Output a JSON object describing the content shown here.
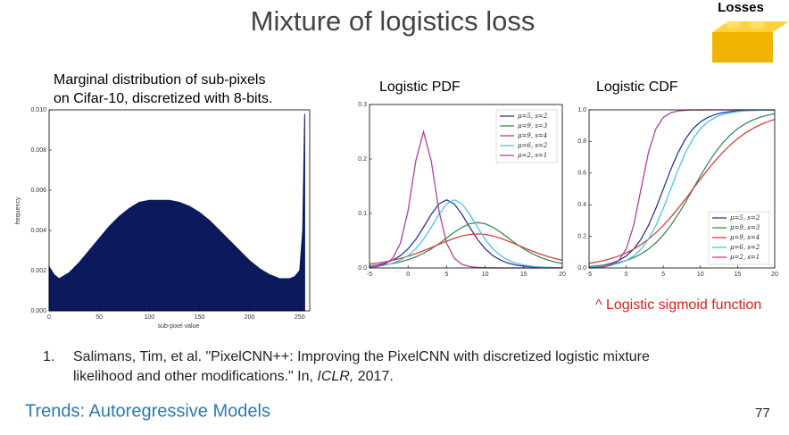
{
  "title": "Mixture of logistics loss",
  "badge": "Losses",
  "annotation": "^ Logistic sigmoid function",
  "reference": {
    "number": "1.",
    "line1": "Salimans, Tim, et al. \"PixelCNN++: Improving the PixelCNN with discretized logistic mixture",
    "line2_start": "likelihood and other modifications.\" In, ",
    "venue": "ICLR,",
    "line2_end": " 2017."
  },
  "footer": "Trends: Autoregressive Models",
  "page_number": "77",
  "chart_data": [
    {
      "type": "area",
      "title": [
        "Marginal distribution of sub-pixels",
        "on Cifar-10, discretized with 8-bits."
      ],
      "x_label": "sub-pixel value",
      "y_label": "frequency",
      "color": "#0b1a5a",
      "x": [
        0,
        5,
        10,
        20,
        30,
        40,
        50,
        60,
        70,
        80,
        90,
        100,
        110,
        120,
        130,
        140,
        150,
        160,
        170,
        180,
        190,
        200,
        210,
        220,
        230,
        240,
        245,
        250,
        253,
        255
      ],
      "values": [
        0.0022,
        0.0018,
        0.0016,
        0.0019,
        0.0024,
        0.003,
        0.0036,
        0.0042,
        0.0047,
        0.0051,
        0.0054,
        0.0055,
        0.0055,
        0.0055,
        0.0054,
        0.0052,
        0.0049,
        0.0045,
        0.004,
        0.0035,
        0.003,
        0.0025,
        0.0021,
        0.0018,
        0.0016,
        0.0016,
        0.0017,
        0.002,
        0.004,
        0.0098
      ],
      "xlim": [
        0,
        260
      ],
      "xticks": [
        0,
        50,
        100,
        150,
        200,
        250
      ],
      "ylim": [
        0,
        0.01
      ],
      "yticks": [
        {
          "value": 0,
          "label": "0.000"
        },
        0.002,
        0.004,
        0.006,
        0.008,
        {
          "value": 0.01,
          "label": "0.010"
        }
      ]
    },
    {
      "type": "line",
      "title": "Logistic PDF",
      "legend": "upper right",
      "x": [
        -5,
        -4,
        -3,
        -2,
        -1,
        0,
        1,
        2,
        3,
        4,
        5,
        6,
        7,
        8,
        9,
        10,
        11,
        12,
        13,
        14,
        15,
        16,
        17,
        18,
        19,
        20
      ],
      "xlim": [
        -5,
        20
      ],
      "xticks": [
        -5,
        0,
        5,
        10,
        15,
        20
      ],
      "ylim": [
        0,
        0.3
      ],
      "yticks": [
        {
          "value": 0,
          "label": "0.0"
        },
        0.1,
        0.2,
        0.3
      ],
      "series": [
        {
          "name": "μ=5, s=2",
          "color": "#2b3a9a",
          "values": [
            0.0033,
            0.0054,
            0.0088,
            0.0142,
            0.0226,
            0.0351,
            0.0525,
            0.0746,
            0.0983,
            0.1175,
            0.125,
            0.1175,
            0.0983,
            0.0746,
            0.0525,
            0.0351,
            0.0226,
            0.0142,
            0.0088,
            0.0054,
            0.0033,
            0.002,
            0.0012,
            0.0008,
            0.0005,
            0.0003
          ]
        },
        {
          "name": "μ=9, s=3",
          "color": "#3d8a5c",
          "values": [
            0.0031,
            0.0043,
            0.0059,
            0.0081,
            0.0111,
            0.0151,
            0.0203,
            0.0269,
            0.035,
            0.0445,
            0.055,
            0.0655,
            0.0747,
            0.0811,
            0.0833,
            0.0811,
            0.0747,
            0.0655,
            0.055,
            0.0445,
            0.035,
            0.0269,
            0.0203,
            0.0151,
            0.0111,
            0.0081
          ]
        },
        {
          "name": "μ=9, s=4",
          "color": "#d2433a",
          "values": [
            0.0071,
            0.009,
            0.0113,
            0.0141,
            0.0175,
            0.0216,
            0.0263,
            0.0315,
            0.0373,
            0.0433,
            0.0492,
            0.0545,
            0.0588,
            0.0615,
            0.0625,
            0.0615,
            0.0588,
            0.0545,
            0.0492,
            0.0433,
            0.0373,
            0.0315,
            0.0263,
            0.0216,
            0.0175,
            0.0141
          ]
        },
        {
          "name": "μ=6, s=2",
          "color": "#4ec3e3",
          "values": [
            0.002,
            0.0033,
            0.0054,
            0.0088,
            0.0142,
            0.0226,
            0.0351,
            0.0525,
            0.0746,
            0.0983,
            0.1175,
            0.125,
            0.1175,
            0.0983,
            0.0746,
            0.0525,
            0.0351,
            0.0226,
            0.0142,
            0.0088,
            0.0054,
            0.0033,
            0.002,
            0.0012,
            0.0008,
            0.0005
          ]
        },
        {
          "name": "μ=2, s=1",
          "color": "#b2409c",
          "values": [
            0.0009,
            0.0025,
            0.0066,
            0.0177,
            0.0452,
            0.105,
            0.1966,
            0.25,
            0.1966,
            0.105,
            0.0452,
            0.0177,
            0.0066,
            0.0025,
            0.0009,
            0.0003,
            0.0001,
            0,
            0,
            0,
            0,
            0,
            0,
            0,
            0,
            0
          ]
        }
      ]
    },
    {
      "type": "line",
      "title": "Logistic CDF",
      "legend": "lower right",
      "x": [
        -5,
        -4,
        -3,
        -2,
        -1,
        0,
        1,
        2,
        3,
        4,
        5,
        6,
        7,
        8,
        9,
        10,
        11,
        12,
        13,
        14,
        15,
        16,
        17,
        18,
        19,
        20
      ],
      "xlim": [
        -5,
        20
      ],
      "xticks": [
        -5,
        0,
        5,
        10,
        15,
        20
      ],
      "ylim": [
        0,
        1
      ],
      "yticks": [
        {
          "value": 0,
          "label": "0.0"
        },
        0.2,
        0.4,
        0.6,
        0.8,
        {
          "value": 1,
          "label": "1.0"
        }
      ],
      "series": [
        {
          "name": "μ=5, s=2",
          "color": "#2b3a9a",
          "values": [
            0.0067,
            0.011,
            0.018,
            0.0293,
            0.0474,
            0.0759,
            0.1192,
            0.1824,
            0.2689,
            0.3775,
            0.5,
            0.6225,
            0.7311,
            0.8176,
            0.8808,
            0.9241,
            0.9526,
            0.9707,
            0.982,
            0.989,
            0.9933,
            0.9959,
            0.9975,
            0.9985,
            0.9991,
            0.9994
          ]
        },
        {
          "name": "μ=9, s=3",
          "color": "#3d8a5c",
          "values": [
            0.0093,
            0.013,
            0.018,
            0.0249,
            0.0344,
            0.0474,
            0.0649,
            0.0884,
            0.1192,
            0.1589,
            0.2086,
            0.2689,
            0.3392,
            0.4174,
            0.5,
            0.5826,
            0.6608,
            0.7311,
            0.7914,
            0.8411,
            0.8808,
            0.9116,
            0.9351,
            0.9526,
            0.9656,
            0.9751
          ]
        },
        {
          "name": "μ=9, s=4",
          "color": "#d2433a",
          "values": [
            0.0293,
            0.0373,
            0.0474,
            0.0601,
            0.0759,
            0.0953,
            0.1192,
            0.148,
            0.1824,
            0.2227,
            0.2689,
            0.3208,
            0.3775,
            0.4378,
            0.5,
            0.5622,
            0.6225,
            0.6792,
            0.7311,
            0.7773,
            0.8176,
            0.852,
            0.8808,
            0.9047,
            0.9241,
            0.9399
          ]
        },
        {
          "name": "μ=6, s=2",
          "color": "#4ec3e3",
          "values": [
            0.0041,
            0.0067,
            0.011,
            0.018,
            0.0293,
            0.0474,
            0.0759,
            0.1192,
            0.1824,
            0.2689,
            0.3775,
            0.5,
            0.6225,
            0.7311,
            0.8176,
            0.8808,
            0.9241,
            0.9526,
            0.9707,
            0.982,
            0.989,
            0.9933,
            0.9959,
            0.9975,
            0.9985,
            0.9991
          ]
        },
        {
          "name": "μ=2, s=1",
          "color": "#b2409c",
          "values": [
            0.0009,
            0.0025,
            0.0067,
            0.018,
            0.0474,
            0.1192,
            0.2689,
            0.5,
            0.7311,
            0.8808,
            0.9526,
            0.982,
            0.9933,
            0.9975,
            0.9991,
            0.9997,
            0.9999,
            1,
            1,
            1,
            1,
            1,
            1,
            1,
            1,
            1
          ]
        }
      ]
    }
  ]
}
